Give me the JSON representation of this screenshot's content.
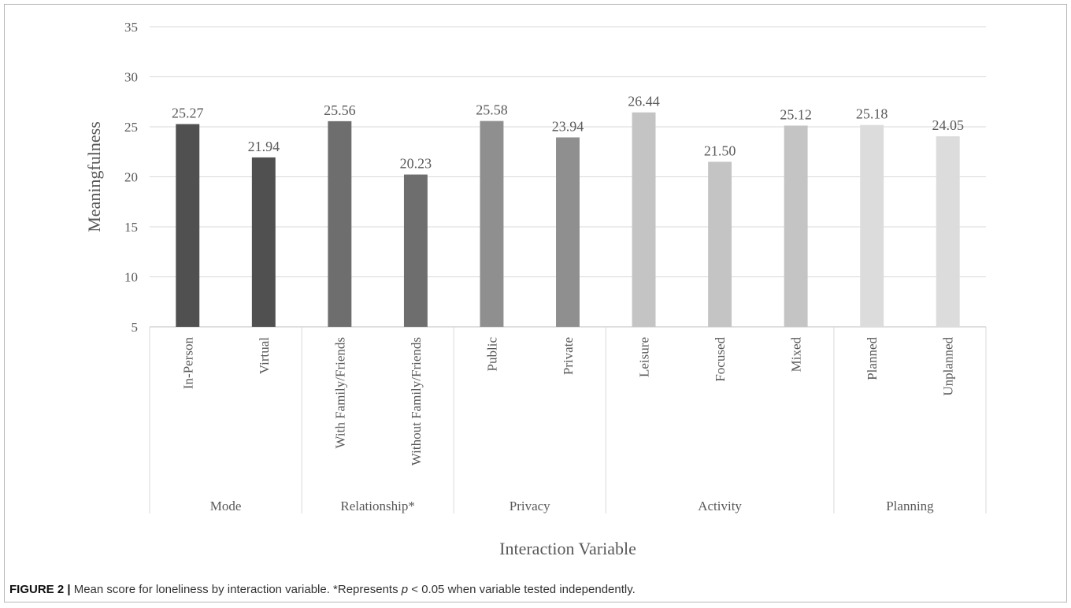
{
  "chart_data": {
    "type": "bar",
    "ylabel": "Meaningfulness",
    "xlabel": "Interaction Variable",
    "ylim": [
      5,
      35
    ],
    "yticks": [
      5,
      10,
      15,
      20,
      25,
      30,
      35
    ],
    "grid": true,
    "groups": [
      {
        "name": "Mode",
        "color": "#505050",
        "bars": [
          {
            "label": "In-Person",
            "value": 25.27,
            "display": "25.27"
          },
          {
            "label": "Virtual",
            "value": 21.94,
            "display": "21.94"
          }
        ]
      },
      {
        "name": "Relationship*",
        "color": "#6e6e6e",
        "bars": [
          {
            "label": "With Family/Friends",
            "value": 25.56,
            "display": "25.56"
          },
          {
            "label": "Without Family/Friends",
            "value": 20.23,
            "display": "20.23"
          }
        ]
      },
      {
        "name": "Privacy",
        "color": "#8f8f8f",
        "bars": [
          {
            "label": "Public",
            "value": 25.58,
            "display": "25.58"
          },
          {
            "label": "Private",
            "value": 23.94,
            "display": "23.94"
          }
        ]
      },
      {
        "name": "Activity",
        "color": "#c4c4c4",
        "bars": [
          {
            "label": "Leisure",
            "value": 26.44,
            "display": "26.44"
          },
          {
            "label": "Focused",
            "value": 21.5,
            "display": "21.50"
          },
          {
            "label": "Mixed",
            "value": 25.12,
            "display": "25.12"
          }
        ]
      },
      {
        "name": "Planning",
        "color": "#dcdcdc",
        "bars": [
          {
            "label": "Planned",
            "value": 25.18,
            "display": "25.18"
          },
          {
            "label": "Unplanned",
            "value": 24.05,
            "display": "24.05"
          }
        ]
      }
    ]
  },
  "caption": {
    "label": "FIGURE 2 |",
    "text_before": " Mean score for loneliness by interaction variable. *Represents ",
    "p_symbol": "p",
    "text_after": " < 0.05 when variable tested independently."
  }
}
